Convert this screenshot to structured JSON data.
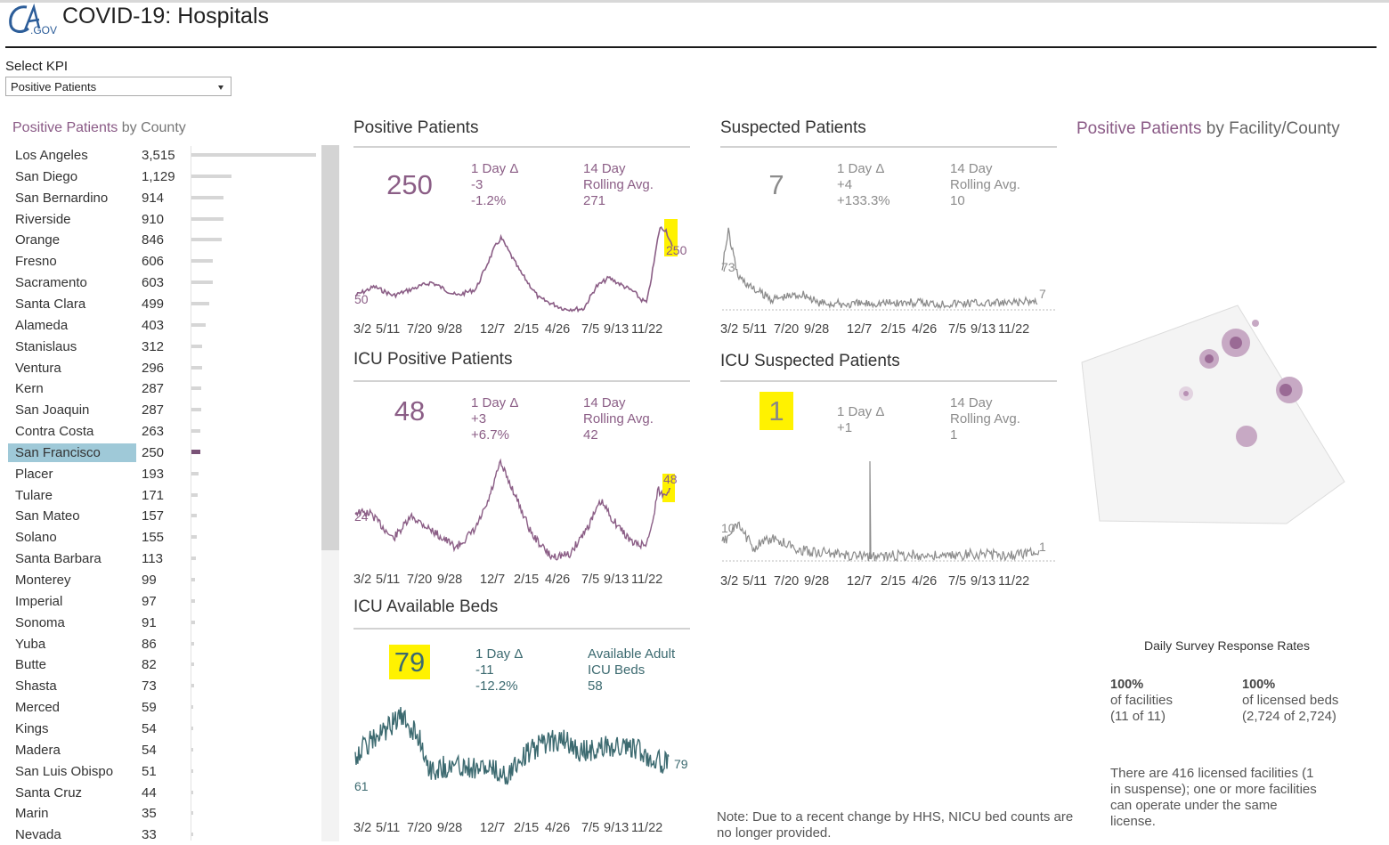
{
  "header": {
    "logo_text": "CA.GOV",
    "title": "COVID-19: Hospitals"
  },
  "kpi_selector": {
    "label": "Select KPI",
    "value": "Positive Patients"
  },
  "county_panel": {
    "title_kpi": "Positive Patients",
    "title_rest": " by County",
    "selected": "San Francisco",
    "max_value": 3515,
    "counties": [
      {
        "name": "Los Angeles",
        "value": "3,515",
        "n": 3515
      },
      {
        "name": "San Diego",
        "value": "1,129",
        "n": 1129
      },
      {
        "name": "San Bernardino",
        "value": "914",
        "n": 914
      },
      {
        "name": "Riverside",
        "value": "910",
        "n": 910
      },
      {
        "name": "Orange",
        "value": "846",
        "n": 846
      },
      {
        "name": "Fresno",
        "value": "606",
        "n": 606
      },
      {
        "name": "Sacramento",
        "value": "603",
        "n": 603
      },
      {
        "name": "Santa Clara",
        "value": "499",
        "n": 499
      },
      {
        "name": "Alameda",
        "value": "403",
        "n": 403
      },
      {
        "name": "Stanislaus",
        "value": "312",
        "n": 312
      },
      {
        "name": "Ventura",
        "value": "296",
        "n": 296
      },
      {
        "name": "Kern",
        "value": "287",
        "n": 287
      },
      {
        "name": "San Joaquin",
        "value": "287",
        "n": 287
      },
      {
        "name": "Contra Costa",
        "value": "263",
        "n": 263
      },
      {
        "name": "San Francisco",
        "value": "250",
        "n": 250
      },
      {
        "name": "Placer",
        "value": "193",
        "n": 193
      },
      {
        "name": "Tulare",
        "value": "171",
        "n": 171
      },
      {
        "name": "San Mateo",
        "value": "157",
        "n": 157
      },
      {
        "name": "Solano",
        "value": "155",
        "n": 155
      },
      {
        "name": "Santa Barbara",
        "value": "113",
        "n": 113
      },
      {
        "name": "Monterey",
        "value": "99",
        "n": 99
      },
      {
        "name": "Imperial",
        "value": "97",
        "n": 97
      },
      {
        "name": "Sonoma",
        "value": "91",
        "n": 91
      },
      {
        "name": "Yuba",
        "value": "86",
        "n": 86
      },
      {
        "name": "Butte",
        "value": "82",
        "n": 82
      },
      {
        "name": "Shasta",
        "value": "73",
        "n": 73
      },
      {
        "name": "Merced",
        "value": "59",
        "n": 59
      },
      {
        "name": "Kings",
        "value": "54",
        "n": 54
      },
      {
        "name": "Madera",
        "value": "54",
        "n": 54
      },
      {
        "name": "San Luis Obispo",
        "value": "51",
        "n": 51
      },
      {
        "name": "Santa Cruz",
        "value": "44",
        "n": 44
      },
      {
        "name": "Marin",
        "value": "35",
        "n": 35
      },
      {
        "name": "Nevada",
        "value": "33",
        "n": 33
      }
    ]
  },
  "x_ticks": [
    "3/2",
    "5/11",
    "7/20",
    "9/28",
    "12/7",
    "2/15",
    "4/26",
    "7/5",
    "9/13",
    "11/22"
  ],
  "panels": {
    "positive": {
      "title": "Positive Patients",
      "value": "250",
      "delta_label": "1 Day Δ",
      "delta_abs": "-3",
      "delta_pct": "-1.2%",
      "avg_label_1": "14 Day",
      "avg_label_2": "Rolling Avg.",
      "avg_value": "271",
      "start_label": "50",
      "end_label": "250"
    },
    "suspected": {
      "title": "Suspected Patients",
      "value": "7",
      "delta_label": "1 Day Δ",
      "delta_abs": "+4",
      "delta_pct": "+133.3%",
      "avg_label_1": "14 Day",
      "avg_label_2": "Rolling Avg.",
      "avg_value": "10",
      "start_label": "73",
      "end_label": "7"
    },
    "icu_positive": {
      "title": "ICU Positive Patients",
      "value": "48",
      "delta_label": "1 Day Δ",
      "delta_abs": "+3",
      "delta_pct": "+6.7%",
      "avg_label_1": "14 Day",
      "avg_label_2": "Rolling Avg.",
      "avg_value": "42",
      "start_label": "24",
      "end_label": "48"
    },
    "icu_suspected": {
      "title": "ICU Suspected Patients",
      "value": "1",
      "delta_label": "1 Day Δ",
      "delta_abs": "+1",
      "avg_label_1": "14 Day",
      "avg_label_2": "Rolling Avg.",
      "avg_value": "1",
      "start_label": "10",
      "end_label": "1"
    },
    "icu_beds": {
      "title": "ICU Available Beds",
      "value": "79",
      "delta_label": "1 Day Δ",
      "delta_abs": "-11",
      "delta_pct": "-12.2%",
      "avail_label_1": "Available Adult",
      "avail_label_2": "ICU Beds",
      "avail_value": "58",
      "start_label": "61",
      "end_label": "79"
    }
  },
  "facility_map": {
    "title_kpi": "Positive Patients",
    "title_rest": " by Facility/County"
  },
  "survey": {
    "title": "Daily Survey Response Rates",
    "facilities_pct": "100%",
    "facilities_label": "of facilities",
    "facilities_count": "(11 of 11)",
    "beds_pct": "100%",
    "beds_label": "of licensed beds",
    "beds_count": "(2,724 of 2,724)",
    "note_1": "There are 416 licensed facilities (1",
    "note_2": "in suspense); one or more facilities",
    "note_3": "can operate under the same",
    "note_4": "license."
  },
  "footnote": {
    "line1": "Note: Due to a recent change by HHS, NICU bed counts are",
    "line2": "no longer provided."
  },
  "colors": {
    "purple": "#8b5e86",
    "gray": "#8c8c8c",
    "teal": "#3c6a70",
    "highlight": "#fff200",
    "selected_row": "#9fc9d8"
  }
}
